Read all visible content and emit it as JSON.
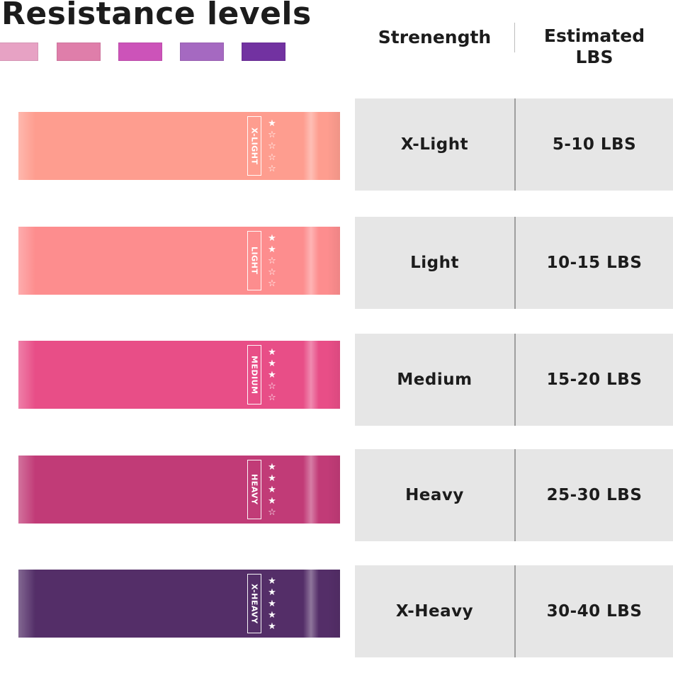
{
  "title": "Resistance levels",
  "swatches": [
    "#e7a2c4",
    "#df7eaa",
    "#cc53b9",
    "#a569c1",
    "#7232a1"
  ],
  "headers": {
    "strength": "Strenength",
    "lbs_line1": "Estimated",
    "lbs_line2": "LBS"
  },
  "levels": [
    {
      "tag": "X-LIGHT",
      "stars": "★☆☆☆☆",
      "strength": "X-Light",
      "lbs": "5-10 LBS",
      "color": "#fe9d8f"
    },
    {
      "tag": "LIGHT",
      "stars": "★★☆☆☆",
      "strength": "Light",
      "lbs": "10-15 LBS",
      "color": "#fd8d8e"
    },
    {
      "tag": "MEDIUM",
      "stars": "★★★☆☆",
      "strength": "Medium",
      "lbs": "15-20 LBS",
      "color": "#e84e87"
    },
    {
      "tag": "HEAVY",
      "stars": "★★★★☆",
      "strength": "Heavy",
      "lbs": "25-30 LBS",
      "color": "#c13b77"
    },
    {
      "tag": "X-HEAVY",
      "stars": "★★★★★",
      "strength": "X-Heavy",
      "lbs": "30-40 LBS",
      "color": "#542e68"
    }
  ]
}
